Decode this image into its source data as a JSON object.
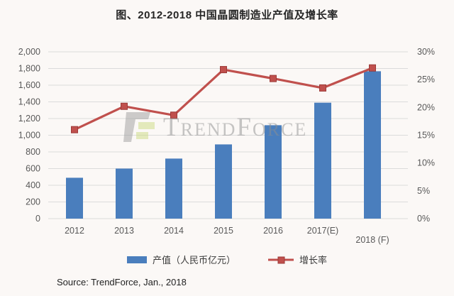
{
  "title": "图、2012-2018 中国晶圆制造业产值及增长率",
  "source": "Source: TrendForce, Jan., 2018",
  "watermark": {
    "text": "TrendForce"
  },
  "legend": {
    "bar_label": "产值（人民币亿元）",
    "line_label": "增长率"
  },
  "colors": {
    "bar": "#4A7EBD",
    "line": "#C0504D",
    "marker_stroke": "#9C3A38",
    "grid": "#DBDBDB",
    "axis_text": "#595959",
    "background": "#FBF8F6",
    "title_text": "#262626",
    "watermark_gray": "#9E9E9E",
    "watermark_green": "#CCDB82"
  },
  "chart_data": {
    "type": "bar",
    "subtype": "combo bar + line, dual axis",
    "title": "图、2012-2018 中国晶圆制造业产值及增长率",
    "categories": [
      "2012",
      "2013",
      "2014",
      "2015",
      "2016",
      "2017(E)",
      "2018 (F)"
    ],
    "series": [
      {
        "name": "产值（人民币亿元）",
        "type": "bar",
        "axis": "left",
        "color": "#4A7EBD",
        "values": [
          490,
          600,
          720,
          890,
          1120,
          1390,
          1767
        ]
      },
      {
        "name": "增长率",
        "type": "line",
        "axis": "right",
        "color": "#C0504D",
        "marker": "square",
        "values": [
          16.0,
          20.2,
          18.6,
          26.8,
          25.2,
          23.5,
          27.1
        ]
      }
    ],
    "left_axis": {
      "min": 0,
      "max": 2000,
      "step": 200,
      "tick_labels": [
        "0",
        "200",
        "400",
        "600",
        "800",
        "1,000",
        "1,200",
        "1,400",
        "1,600",
        "1,800",
        "2,000"
      ]
    },
    "right_axis": {
      "min": 0,
      "max": 30,
      "step": 5,
      "tick_labels": [
        "0%",
        "5%",
        "10%",
        "15%",
        "20%",
        "25%",
        "30%"
      ]
    },
    "grid": true,
    "legend_position": "bottom"
  }
}
